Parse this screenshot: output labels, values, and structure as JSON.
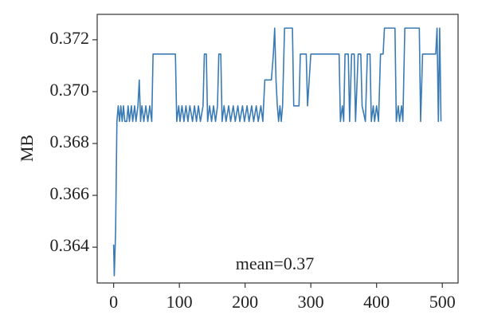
{
  "chart_data": {
    "type": "line",
    "y_label": "MB",
    "annotation": "mean=0.37",
    "x": [
      0,
      1,
      3,
      5,
      7,
      9,
      11,
      13,
      15,
      17,
      20,
      22,
      24,
      27,
      29,
      32,
      34,
      37,
      39,
      41,
      43,
      46,
      49,
      52,
      55,
      58,
      60,
      94,
      96,
      99,
      101,
      104,
      107,
      110,
      113,
      116,
      120,
      123,
      126,
      129,
      132,
      136,
      138,
      141,
      143,
      146,
      149,
      152,
      155,
      158,
      160,
      163,
      165,
      168,
      171,
      175,
      178,
      182,
      185,
      189,
      192,
      196,
      199,
      203,
      206,
      210,
      213,
      217,
      220,
      224,
      227,
      230,
      240,
      243,
      245,
      247,
      249,
      251,
      253,
      255,
      257,
      260,
      272,
      274,
      282,
      284,
      293,
      295,
      300,
      343,
      345,
      348,
      350,
      352,
      357,
      359,
      362,
      366,
      368,
      372,
      376,
      378,
      383,
      386,
      390,
      392,
      395,
      397,
      400,
      403,
      406,
      410,
      412,
      428,
      430,
      433,
      435,
      438,
      440,
      443,
      465,
      467,
      470,
      490,
      492,
      494,
      496,
      498
    ],
    "series": [
      {
        "color": "#3a7bb5",
        "values": [
          0.3641,
          0.3629,
          0.3646,
          0.36885,
          0.36945,
          0.36885,
          0.36945,
          0.36885,
          0.36945,
          0.36885,
          0.36885,
          0.36945,
          0.36885,
          0.36945,
          0.36885,
          0.36945,
          0.36885,
          0.36945,
          0.37045,
          0.36885,
          0.36945,
          0.36885,
          0.36945,
          0.36885,
          0.36945,
          0.36885,
          0.37145,
          0.37145,
          0.36885,
          0.36945,
          0.36885,
          0.36945,
          0.36885,
          0.36945,
          0.36885,
          0.36945,
          0.36885,
          0.36945,
          0.36885,
          0.36945,
          0.36885,
          0.36945,
          0.37145,
          0.37145,
          0.36885,
          0.36945,
          0.36885,
          0.36945,
          0.36885,
          0.36945,
          0.37145,
          0.37145,
          0.36885,
          0.36945,
          0.36885,
          0.36945,
          0.36885,
          0.36945,
          0.36885,
          0.36945,
          0.36885,
          0.36945,
          0.36885,
          0.36945,
          0.36885,
          0.36945,
          0.36885,
          0.36945,
          0.36885,
          0.36945,
          0.36885,
          0.37045,
          0.37045,
          0.37145,
          0.37245,
          0.37045,
          0.36945,
          0.36885,
          0.36945,
          0.36885,
          0.36945,
          0.37245,
          0.37245,
          0.36945,
          0.36945,
          0.37145,
          0.37145,
          0.36945,
          0.37145,
          0.37145,
          0.36885,
          0.36945,
          0.36885,
          0.37145,
          0.37145,
          0.36885,
          0.37145,
          0.37145,
          0.36885,
          0.37145,
          0.37145,
          0.36945,
          0.36885,
          0.37145,
          0.37145,
          0.36885,
          0.36945,
          0.36885,
          0.36945,
          0.36885,
          0.37145,
          0.37145,
          0.37245,
          0.37245,
          0.36885,
          0.36945,
          0.36885,
          0.36945,
          0.36885,
          0.37245,
          0.37245,
          0.36885,
          0.37145,
          0.37145,
          0.37245,
          0.36885,
          0.37245,
          0.36885
        ]
      }
    ],
    "xlim": [
      -25,
      524
    ],
    "ylim": [
      0.36262,
      0.37298
    ],
    "xticks": [
      0,
      100,
      200,
      300,
      400,
      500
    ],
    "yticks": [
      0.364,
      0.366,
      0.368,
      {
        "value": 0.37,
        "label": "0.370"
      },
      0.372
    ]
  }
}
